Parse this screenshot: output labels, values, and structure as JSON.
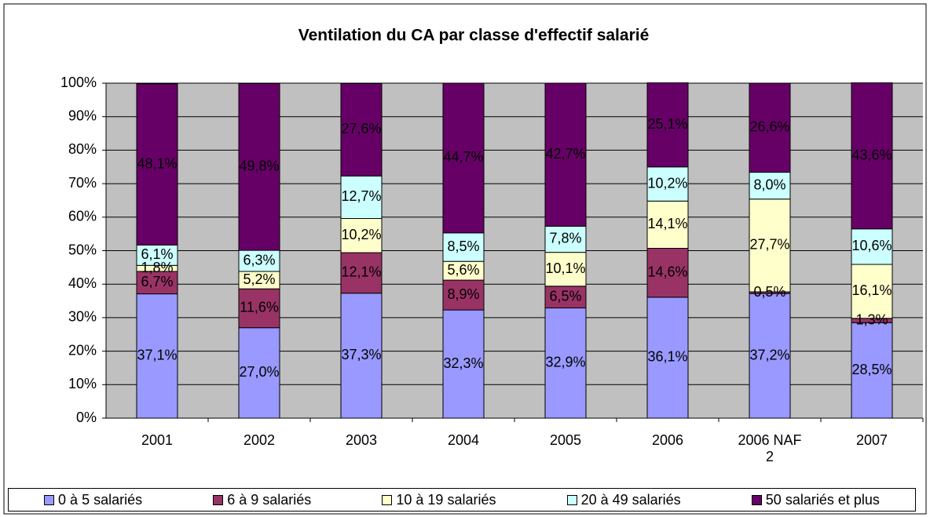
{
  "chart_data": {
    "type": "bar",
    "stacked": true,
    "title": "Ventilation du CA par classe d'effectif salarié",
    "categories": [
      "2001",
      "2002",
      "2003",
      "2004",
      "2005",
      "2006",
      "2006 NAF 2",
      "2007"
    ],
    "series": [
      {
        "name": "0 à 5 salariés",
        "color": "#9999ff",
        "values": [
          37.1,
          27.0,
          37.3,
          32.3,
          32.9,
          36.1,
          37.2,
          28.5
        ],
        "value_labels": [
          "37,1%",
          "27,0%",
          "37,3%",
          "32,3%",
          "32,9%",
          "36,1%",
          "37,2%",
          "28,5%"
        ]
      },
      {
        "name": "6 à 9 salariés",
        "color": "#993366",
        "values": [
          6.7,
          11.6,
          12.1,
          8.9,
          6.5,
          14.6,
          0.5,
          1.3
        ],
        "value_labels": [
          "6,7%",
          "11,6%",
          "12,1%",
          "8,9%",
          "6,5%",
          "14,6%",
          "0,5%",
          "1,3%"
        ]
      },
      {
        "name": "10 à 19 salariés",
        "color": "#ffffcc",
        "values": [
          1.8,
          5.2,
          10.2,
          5.6,
          10.1,
          14.1,
          27.7,
          16.1
        ],
        "value_labels": [
          "1,8%",
          "5,2%",
          "10,2%",
          "5,6%",
          "10,1%",
          "14,1%",
          "27,7%",
          "16,1%"
        ]
      },
      {
        "name": "20 à 49 salariés",
        "color": "#ccffff",
        "values": [
          6.1,
          6.3,
          12.7,
          8.5,
          7.8,
          10.2,
          8.0,
          10.6
        ],
        "value_labels": [
          "6,1%",
          "6,3%",
          "12,7%",
          "8,5%",
          "7,8%",
          "10,2%",
          "8,0%",
          "10,6%"
        ]
      },
      {
        "name": "50 salariés et plus",
        "color": "#660066",
        "values": [
          48.1,
          49.8,
          27.6,
          44.7,
          42.7,
          25.1,
          26.6,
          43.6
        ],
        "value_labels": [
          "48,1%",
          "49,8%",
          "27,6%",
          "44,7%",
          "42,7%",
          "25,1%",
          "26,6%",
          "43,6%"
        ]
      }
    ],
    "ylim": [
      0,
      100
    ],
    "yticks": [
      {
        "value": 0,
        "label": "0%"
      },
      {
        "value": 10,
        "label": "10%"
      },
      {
        "value": 20,
        "label": "20%"
      },
      {
        "value": 30,
        "label": "30%"
      },
      {
        "value": 40,
        "label": "40%"
      },
      {
        "value": 50,
        "label": "50%"
      },
      {
        "value": 60,
        "label": "60%"
      },
      {
        "value": 70,
        "label": "70%"
      },
      {
        "value": 80,
        "label": "80%"
      },
      {
        "value": 90,
        "label": "90%"
      },
      {
        "value": 100,
        "label": "100%"
      }
    ],
    "grid": true,
    "plot_background": "#c0c0c0",
    "legend": "bottom"
  }
}
